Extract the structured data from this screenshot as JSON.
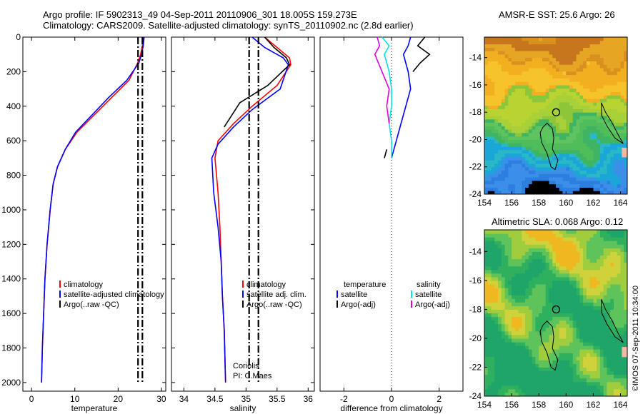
{
  "title_line1": "Argo profile: IF 5902313_49 04-Sep-2011 20110906_301 18.005S 159.273E",
  "title_line2": "Climatology: CARS2009. Satellite-adjusted climatology: synTS_20110902.nc (2.8d earlier)",
  "stamp": "©IMOS 07-Sep-2011 10:34:00",
  "colors": {
    "red": "#ff0000",
    "blue": "#0000ff",
    "black": "#000000",
    "cyan": "#00e5e5",
    "magenta": "#e000e0"
  },
  "chart_data": [
    {
      "type": "line",
      "xlabel": "temperature",
      "ylabel": "",
      "xlim": [
        -2,
        31
      ],
      "ylim": [
        2050,
        0
      ],
      "xticks": [
        0,
        10,
        20,
        30
      ],
      "yticks": [
        0,
        200,
        400,
        600,
        800,
        1000,
        1200,
        1400,
        1600,
        1800,
        2000
      ],
      "legend": [
        "climatology",
        "satellite-adjusted climatology",
        "Argo(..raw -QC)"
      ],
      "series": [
        {
          "name": "climatology",
          "color": "red",
          "points": [
            [
              25.8,
              0
            ],
            [
              25.6,
              50
            ],
            [
              25.2,
              100
            ],
            [
              24.5,
              150
            ],
            [
              22.5,
              250
            ],
            [
              18.5,
              350
            ],
            [
              14.5,
              450
            ],
            [
              10.5,
              550
            ],
            [
              7.8,
              650
            ],
            [
              6.0,
              750
            ],
            [
              5.0,
              850
            ],
            [
              4.3,
              1000
            ],
            [
              3.6,
              1200
            ],
            [
              3.1,
              1400
            ],
            [
              2.8,
              1600
            ],
            [
              2.5,
              1800
            ],
            [
              2.3,
              2000
            ]
          ]
        },
        {
          "name": "satellite-adjusted climatology",
          "color": "blue",
          "points": [
            [
              26.0,
              0
            ],
            [
              25.8,
              50
            ],
            [
              25.4,
              100
            ],
            [
              24.8,
              150
            ],
            [
              22.0,
              250
            ],
            [
              17.8,
              350
            ],
            [
              14.0,
              450
            ],
            [
              10.2,
              550
            ],
            [
              7.8,
              650
            ],
            [
              6.0,
              750
            ],
            [
              5.0,
              850
            ],
            [
              4.3,
              1000
            ],
            [
              3.6,
              1200
            ],
            [
              3.1,
              1400
            ],
            [
              2.8,
              1600
            ],
            [
              2.5,
              1800
            ],
            [
              2.3,
              2000
            ]
          ]
        },
        {
          "name": "Argo(..raw -QC)",
          "color": "black",
          "dash": true,
          "points": [
            [
              24.6,
              0
            ],
            [
              24.6,
              800
            ],
            [
              24.6,
              2000
            ]
          ]
        },
        {
          "name": "Argo(..raw -QC)",
          "color": "black",
          "dash": true,
          "points": [
            [
              25.6,
              0
            ],
            [
              25.6,
              800
            ],
            [
              25.6,
              2000
            ]
          ]
        }
      ]
    },
    {
      "type": "line",
      "xlabel": "salinity",
      "xlim": [
        33.8,
        36.1
      ],
      "ylim": [
        2050,
        0
      ],
      "xticks": [
        34,
        34.5,
        35,
        35.5,
        36
      ],
      "yticks": [
        0,
        200,
        400,
        600,
        800,
        1000,
        1200,
        1400,
        1600,
        1800,
        2000
      ],
      "legend": [
        "climatology",
        "satellite adj. clim.",
        "Argo(..raw -QC)"
      ],
      "annotations": [
        "Coriolis",
        "PI: C.Maes"
      ],
      "series": [
        {
          "name": "climatology",
          "color": "red",
          "points": [
            [
              35.3,
              0
            ],
            [
              35.5,
              60
            ],
            [
              35.7,
              120
            ],
            [
              35.72,
              160
            ],
            [
              35.5,
              280
            ],
            [
              35.1,
              400
            ],
            [
              34.8,
              500
            ],
            [
              34.55,
              600
            ],
            [
              34.5,
              700
            ],
            [
              34.55,
              900
            ],
            [
              34.58,
              1100
            ],
            [
              34.6,
              1300
            ],
            [
              34.62,
              1500
            ],
            [
              34.65,
              1700
            ],
            [
              34.67,
              2000
            ]
          ]
        },
        {
          "name": "satellite adj. clim.",
          "color": "blue",
          "points": [
            [
              35.1,
              0
            ],
            [
              35.3,
              60
            ],
            [
              35.6,
              120
            ],
            [
              35.68,
              160
            ],
            [
              35.55,
              300
            ],
            [
              35.1,
              420
            ],
            [
              34.8,
              520
            ],
            [
              34.55,
              620
            ],
            [
              34.45,
              700
            ],
            [
              34.48,
              900
            ],
            [
              34.55,
              1100
            ],
            [
              34.6,
              1300
            ],
            [
              34.62,
              1500
            ],
            [
              34.65,
              1700
            ],
            [
              34.67,
              2000
            ]
          ]
        },
        {
          "name": "Argo(..raw -QC)",
          "color": "black",
          "points": [
            [
              35.3,
              0
            ],
            [
              35.45,
              60
            ],
            [
              35.65,
              120
            ],
            [
              35.7,
              160
            ],
            [
              35.35,
              280
            ],
            [
              34.9,
              380
            ],
            [
              34.65,
              520
            ]
          ]
        },
        {
          "name": "Argo(..raw -QC)",
          "color": "black",
          "dash": true,
          "points": [
            [
              35.05,
              0
            ],
            [
              35.05,
              2000
            ]
          ]
        },
        {
          "name": "Argo(..raw -QC)",
          "color": "black",
          "dash": true,
          "points": [
            [
              35.2,
              0
            ],
            [
              35.2,
              2000
            ]
          ]
        }
      ]
    },
    {
      "type": "line",
      "xlabel": "difference from climatology",
      "xlim": [
        -3,
        3
      ],
      "ylim": [
        2050,
        0
      ],
      "xticks": [
        -2,
        0,
        2
      ],
      "legend": [
        "temperature",
        "satellite",
        "Argo(-adj)",
        "salinity",
        "satellite",
        "Argo(-adj)"
      ],
      "series": [
        {
          "name": "satellite",
          "color": "blue",
          "points": [
            [
              0.8,
              0
            ],
            [
              0.7,
              50
            ],
            [
              0.5,
              100
            ],
            [
              0.7,
              200
            ],
            [
              0.8,
              300
            ],
            [
              0.6,
              400
            ],
            [
              0.4,
              500
            ],
            [
              0.2,
              600
            ],
            [
              0,
              700
            ]
          ]
        },
        {
          "name": "Argo(-adj)",
          "color": "black",
          "points": [
            [
              1.4,
              0
            ],
            [
              1.1,
              50
            ],
            [
              1.6,
              100
            ],
            [
              1.2,
              150
            ],
            [
              0.9,
              200
            ]
          ]
        },
        {
          "name": "satellite",
          "color": "cyan",
          "points": [
            [
              -0.4,
              0
            ],
            [
              -0.1,
              50
            ],
            [
              -0.3,
              100
            ],
            [
              -0.1,
              200
            ],
            [
              0,
              300
            ],
            [
              0,
              400
            ],
            [
              -0.1,
              500
            ],
            [
              0,
              600
            ],
            [
              0,
              700
            ]
          ]
        },
        {
          "name": "Argo(-adj)",
          "color": "magenta",
          "points": [
            [
              -0.6,
              0
            ],
            [
              -0.5,
              50
            ],
            [
              -0.7,
              100
            ],
            [
              -0.4,
              200
            ],
            [
              -0.1,
              300
            ],
            [
              -0.2,
              400
            ],
            [
              -0.1,
              500
            ]
          ]
        },
        {
          "name": "Argo(-adj)",
          "color": "black",
          "points": [
            [
              -0.2,
              650
            ],
            [
              -0.3,
              700
            ]
          ]
        }
      ]
    },
    {
      "type": "heatmap",
      "title": "AMSR-E SST: 25.6 Argo: 26",
      "xlim": [
        154,
        164.5
      ],
      "ylim": [
        -24,
        -12.5
      ],
      "xticks": [
        154,
        156,
        158,
        160,
        162,
        164
      ],
      "yticks": [
        -14,
        -16,
        -18,
        -20,
        -22,
        -24
      ],
      "marker": {
        "lon": 159.273,
        "lat": -18.005
      }
    },
    {
      "type": "heatmap",
      "title": "Altimetric SLA: 0.068 Argo: 0.12",
      "xlim": [
        154,
        164.5
      ],
      "ylim": [
        -24,
        -12.5
      ],
      "xticks": [
        154,
        156,
        158,
        160,
        162,
        164
      ],
      "yticks": [
        -14,
        -16,
        -18,
        -20,
        -22,
        -24
      ],
      "marker": {
        "lon": 159.273,
        "lat": -18.005
      }
    }
  ]
}
